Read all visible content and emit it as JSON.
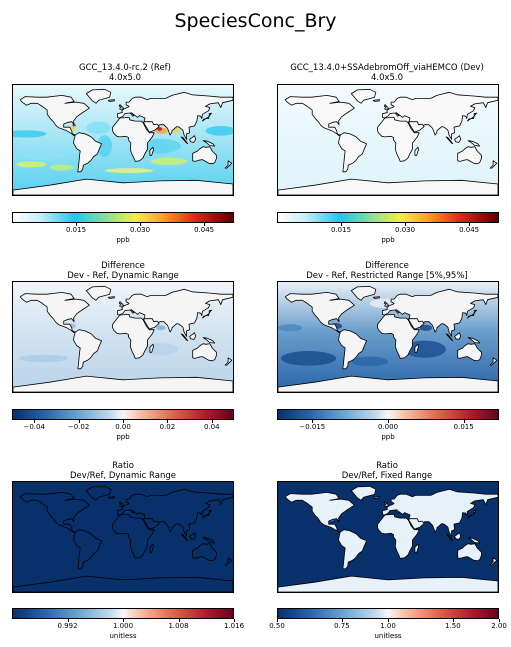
{
  "figure_title": "SpeciesConc_Bry",
  "colors": {
    "ref_ocean": "#e6f7fd",
    "dev_ocean": "#eef9fd",
    "diff_dark": "#2d67ad",
    "ratio_dark": "#08306b",
    "land_light": "#f4f4f4"
  },
  "chart_data": [
    {
      "type": "heatmap",
      "title": "GCC_13.4.0-rc.2 (Ref)",
      "subtitle": "4.0x5.0",
      "colorbar": {
        "ticks": [
          "0.015",
          "0.030",
          "0.045"
        ],
        "tick_values": [
          0.015,
          0.03,
          0.045
        ],
        "range": [
          0,
          0.052
        ],
        "unit": "ppb",
        "colormap": "white-cyan-yellow-red"
      }
    },
    {
      "type": "heatmap",
      "title": "GCC_13.4.0+SSAdebromOff_viaHEMCO (Dev)",
      "subtitle": "4.0x5.0",
      "colorbar": {
        "ticks": [
          "0.015",
          "0.030",
          "0.045"
        ],
        "tick_values": [
          0.015,
          0.03,
          0.045
        ],
        "range": [
          0,
          0.052
        ],
        "unit": "ppb",
        "colormap": "white-cyan-yellow-red"
      }
    },
    {
      "type": "heatmap",
      "title": "Difference",
      "subtitle": "Dev - Ref, Dynamic Range",
      "colorbar": {
        "ticks": [
          "−0.04",
          "−0.02",
          "0.00",
          "0.02",
          "0.04"
        ],
        "tick_values": [
          -0.04,
          -0.02,
          0,
          0.02,
          0.04
        ],
        "range": [
          -0.05,
          0.05
        ],
        "unit": "ppb",
        "colormap": "blue-white-red"
      }
    },
    {
      "type": "heatmap",
      "title": "Difference",
      "subtitle": "Dev - Ref, Restricted Range [5%,95%]",
      "colorbar": {
        "ticks": [
          "−0.015",
          "0.000",
          "0.015"
        ],
        "tick_values": [
          -0.015,
          0,
          0.015
        ],
        "range": [
          -0.022,
          0.022
        ],
        "unit": "ppb",
        "colormap": "blue-white-red"
      }
    },
    {
      "type": "heatmap",
      "title": "Ratio",
      "subtitle": "Dev/Ref, Dynamic Range",
      "colorbar": {
        "ticks": [
          "0.992",
          "1.000",
          "1.008",
          "1.016"
        ],
        "tick_values": [
          0.992,
          1.0,
          1.008,
          1.016
        ],
        "range": [
          0.984,
          1.016
        ],
        "unit": "unitless",
        "colormap": "blue-white-red"
      }
    },
    {
      "type": "heatmap",
      "title": "Ratio",
      "subtitle": "Dev/Ref, Fixed Range",
      "colorbar": {
        "ticks": [
          "0.50",
          "0.75",
          "1.00",
          "1.50",
          "2.00"
        ],
        "tick_values": [
          0.5,
          0.75,
          1.0,
          1.5,
          2.0
        ],
        "range": [
          0.5,
          2.0
        ],
        "scale": "log",
        "unit": "unitless",
        "colormap": "blue-white-red"
      }
    }
  ]
}
